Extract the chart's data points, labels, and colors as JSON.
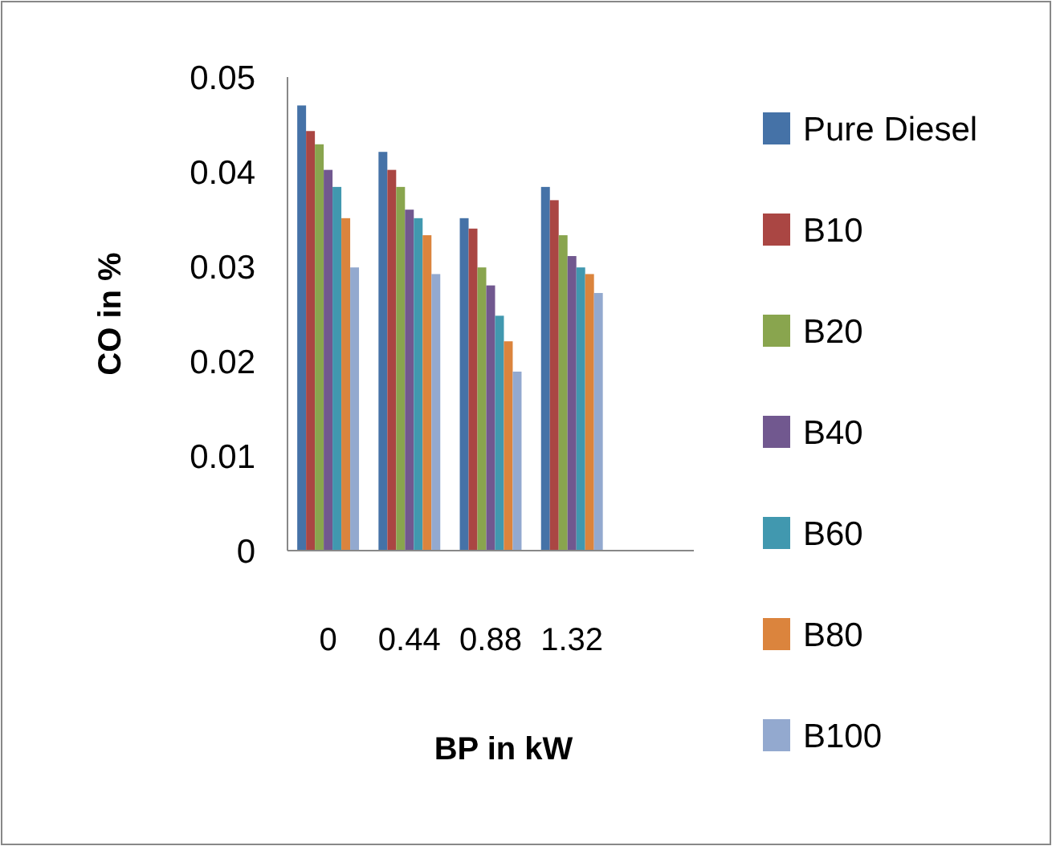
{
  "chart_data": {
    "type": "bar",
    "xlabel": "BP in kW",
    "ylabel": "CO in %",
    "categories": [
      "0",
      "0.44",
      "0.88",
      "1.32",
      null
    ],
    "ylim": [
      0,
      0.05
    ],
    "yticks": [
      {
        "value": 0,
        "label": "0"
      },
      0.01,
      0.02,
      0.03,
      0.04,
      0.05
    ],
    "grid": false,
    "legend": "right",
    "series": [
      {
        "name": "Pure Diesel",
        "color": "#4572a7",
        "values": [
          0.047,
          0.0421,
          0.0351,
          0.0384,
          null
        ]
      },
      {
        "name": "B10",
        "color": "#aa4643",
        "values": [
          0.0443,
          0.0402,
          0.034,
          0.037,
          null
        ]
      },
      {
        "name": "B20",
        "color": "#89a54e",
        "values": [
          0.0429,
          0.0384,
          0.0299,
          0.0333,
          null
        ]
      },
      {
        "name": "B40",
        "color": "#71588f",
        "values": [
          0.0402,
          0.036,
          0.028,
          0.0311,
          null
        ]
      },
      {
        "name": "B60",
        "color": "#4198af",
        "values": [
          0.0384,
          0.0351,
          0.0248,
          0.0299,
          null
        ]
      },
      {
        "name": "B80",
        "color": "#db843d",
        "values": [
          0.0351,
          0.0333,
          0.0221,
          0.0292,
          null
        ]
      },
      {
        "name": "B100",
        "color": "#93a9cf",
        "values": [
          0.0299,
          0.0292,
          0.0189,
          0.0272,
          null
        ]
      }
    ]
  }
}
